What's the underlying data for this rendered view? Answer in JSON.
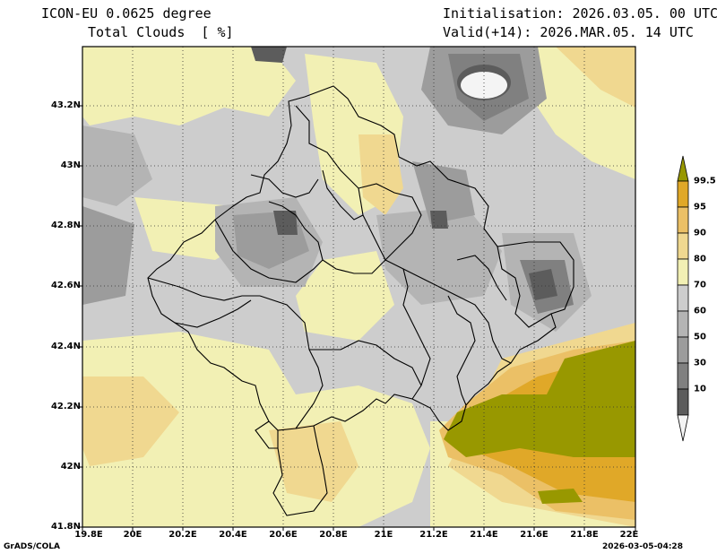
{
  "header": {
    "model": "ICON-EU 0.0625 degree",
    "field": "Total Clouds  [ %]",
    "init": "Initialisation: 2026.03.05. 00 UTC",
    "valid": "Valid(+14): 2026.MAR.05. 14 UTC"
  },
  "axes": {
    "lat_labels": [
      "43.2N",
      "43N",
      "42.8N",
      "42.6N",
      "42.4N",
      "42.2N",
      "42N",
      "41.8N"
    ],
    "lon_labels": [
      "19.8E",
      "20E",
      "20.2E",
      "20.4E",
      "20.6E",
      "20.8E",
      "21E",
      "21.2E",
      "21.4E",
      "21.6E",
      "21.8E",
      "22E"
    ]
  },
  "legend": {
    "levels": [
      "99.5",
      "95",
      "90",
      "80",
      "70",
      "60",
      "50",
      "30",
      "10"
    ],
    "colors": {
      "c0": "#f4f4f4",
      "c10": "#5c5c5c",
      "c30": "#808080",
      "c50": "#9c9c9c",
      "c60": "#b4b4b4",
      "c70": "#cdcdcd",
      "c80": "#f2f0b4",
      "c90": "#f0d890",
      "c95": "#ebc066",
      "c995": "#e0a828",
      "c100": "#989800"
    }
  },
  "footer": {
    "left": "GrADS/COLA",
    "right": "2026-03-05-04:28"
  }
}
